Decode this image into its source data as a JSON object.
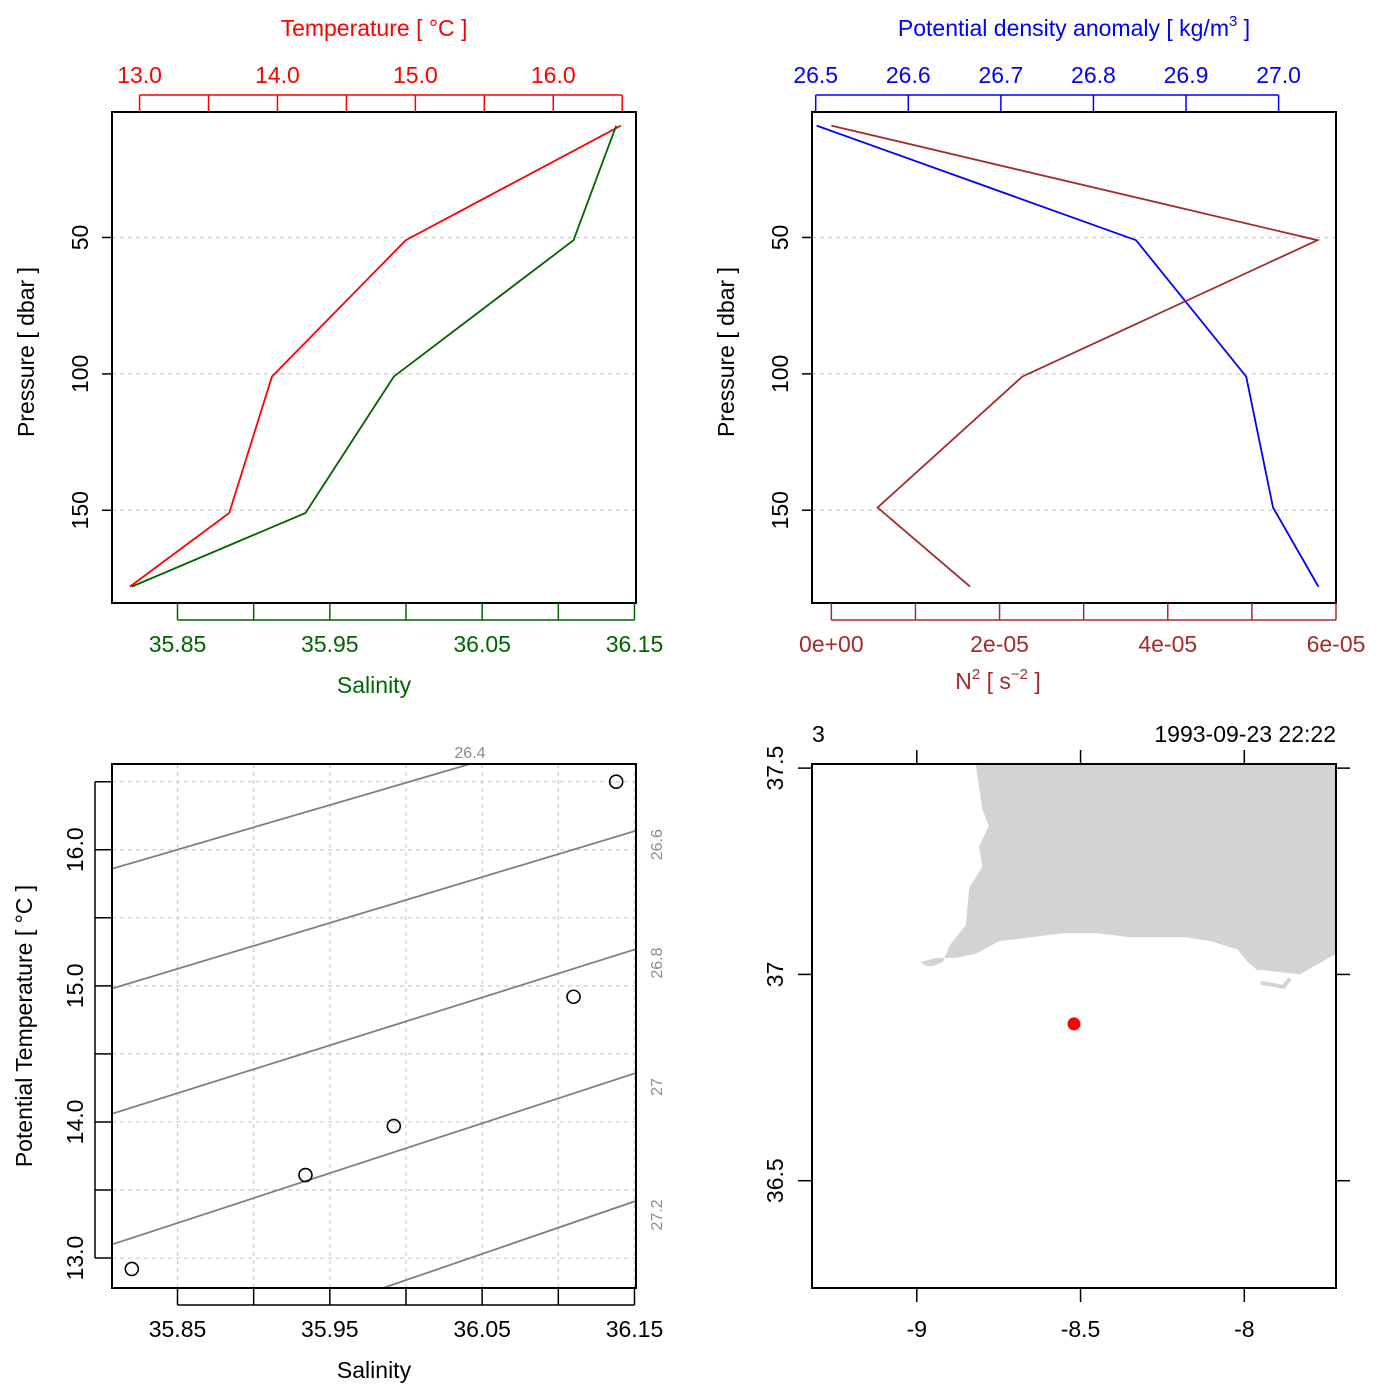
{
  "chart_data": [
    {
      "type": "line",
      "panel": "profile-temperature-salinity",
      "ylabel": "Pressure [ dbar ]",
      "y_ticks": [
        50,
        100,
        150
      ],
      "ylim": [
        184,
        4
      ],
      "grid": true,
      "top_axis": {
        "label": "Temperature [ °C ]",
        "color": "#ff0000",
        "tick_labels": [
          "13.0",
          "14.0",
          "15.0",
          "16.0"
        ],
        "tick_values": [
          13.0,
          13.5,
          14.0,
          14.5,
          15.0,
          15.5,
          16.0,
          16.5
        ],
        "labeled_ticks": [
          13.0,
          14.0,
          15.0,
          16.0
        ],
        "range": [
          12.8,
          16.6
        ]
      },
      "bottom_axis": {
        "label": "Salinity",
        "color": "#006400",
        "tick_labels": [
          "35.85",
          "35.95",
          "36.05",
          "36.15"
        ],
        "tick_values": [
          35.85,
          35.9,
          35.95,
          36.0,
          36.05,
          36.1,
          36.15
        ],
        "labeled_ticks": [
          35.85,
          35.95,
          36.05,
          36.15
        ],
        "range": [
          35.807,
          36.151
        ]
      },
      "series": [
        {
          "color": "#ff0000",
          "axis": "top",
          "x": [
            16.49,
            14.93,
            13.96,
            13.65,
            12.93
          ],
          "y": [
            9,
            51,
            101,
            151,
            178
          ]
        },
        {
          "color": "#006400",
          "axis": "bottom",
          "x": [
            36.138,
            36.11,
            35.992,
            35.934,
            35.82
          ],
          "y": [
            9,
            51,
            101,
            151,
            178
          ]
        }
      ]
    },
    {
      "type": "line",
      "panel": "profile-density-n2",
      "ylabel": "Pressure [ dbar ]",
      "y_ticks": [
        50,
        100,
        150
      ],
      "ylim": [
        184,
        4
      ],
      "grid": true,
      "top_axis": {
        "label": "Potential density anomaly [ kg/m³ ]",
        "color": "#0000ff",
        "tick_labels": [
          "26.5",
          "26.6",
          "26.7",
          "26.8",
          "26.9",
          "27.0"
        ],
        "tick_values": [
          26.5,
          26.6,
          26.7,
          26.8,
          26.9,
          27.0
        ],
        "labeled_ticks": [
          26.5,
          26.6,
          26.7,
          26.8,
          26.9,
          27.0
        ],
        "range": [
          26.496,
          27.062
        ]
      },
      "bottom_axis": {
        "label": "N² [ s⁻² ]",
        "color": "#a52a2a",
        "tick_labels": [
          "0e+00",
          "2e-05",
          "4e-05",
          "6e-05"
        ],
        "tick_values": [
          0,
          1e-05,
          2e-05,
          3e-05,
          4e-05,
          5e-05,
          6e-05
        ],
        "labeled_ticks": [
          0,
          2e-05,
          4e-05,
          6e-05
        ],
        "range": [
          -2.3e-06,
          6e-05
        ]
      },
      "series": [
        {
          "color": "#0000ff",
          "axis": "top",
          "x": [
            26.501,
            26.846,
            26.965,
            26.994,
            27.043
          ],
          "y": [
            9,
            51,
            101,
            149,
            178
          ]
        },
        {
          "color": "#a52a2a",
          "axis": "bottom",
          "x": [
            0.0,
            5.78e-05,
            2.27e-05,
            5.5e-06,
            1.65e-05
          ],
          "y": [
            9,
            51,
            101,
            149,
            178
          ]
        }
      ]
    },
    {
      "type": "scatter",
      "panel": "ts-diagram",
      "xlabel": "Salinity",
      "ylabel": "Potential Temperature [ °C ]",
      "x_tick_labels": [
        "35.85",
        "35.95",
        "36.05",
        "36.15"
      ],
      "x_tick_values": [
        35.85,
        35.9,
        35.95,
        36.0,
        36.05,
        36.1,
        36.15
      ],
      "x_labeled_ticks": [
        35.85,
        35.95,
        36.05,
        36.15
      ],
      "xlim": [
        35.807,
        36.151
      ],
      "y_tick_labels": [
        "13.0",
        "14.0",
        "15.0",
        "16.0"
      ],
      "y_tick_values": [
        13.0,
        13.5,
        14.0,
        14.5,
        15.0,
        15.5,
        16.0,
        16.5
      ],
      "y_labeled_ticks": [
        13.0,
        14.0,
        15.0,
        16.0
      ],
      "ylim": [
        12.78,
        16.63
      ],
      "grid": true,
      "points": {
        "x": [
          35.82,
          35.934,
          35.992,
          36.11,
          36.138
        ],
        "y": [
          12.92,
          13.61,
          13.97,
          14.92,
          16.5
        ]
      },
      "isopycnals": [
        {
          "label": "26.4",
          "x0": 35.807,
          "y0": 15.86,
          "x1": 36.042,
          "y1": 16.63
        },
        {
          "label": "26.6",
          "x0": 35.807,
          "y0": 14.98,
          "x1": 36.151,
          "y1": 16.14
        },
        {
          "label": "26.8",
          "x0": 35.807,
          "y0": 14.06,
          "x1": 36.151,
          "y1": 15.27
        },
        {
          "label": "27",
          "x0": 35.807,
          "y0": 13.1,
          "x1": 36.151,
          "y1": 14.36
        },
        {
          "label": "27.2",
          "x0": 35.985,
          "y0": 12.78,
          "x1": 36.151,
          "y1": 13.42
        }
      ]
    },
    {
      "type": "map",
      "panel": "station-map",
      "top_left_label": "3",
      "top_right_label": "1993-09-23 22:22",
      "x_tick_labels": [
        "-9",
        "-8.5",
        "-8"
      ],
      "x_tick_values": [
        -9,
        -8.5,
        -8
      ],
      "xlim": [
        -9.32,
        -7.72
      ],
      "y_tick_labels": [
        "37.5",
        "37",
        "36.5"
      ],
      "y_tick_values": [
        37.5,
        37,
        36.5
      ],
      "ylim": [
        36.24,
        37.51
      ],
      "land_color": "#d3d3d3",
      "station": {
        "lon": -8.52,
        "lat": 36.88,
        "color": "#ff0000"
      },
      "coastline": [
        [
          -8.82,
          37.51
        ],
        [
          -8.8,
          37.4
        ],
        [
          -8.78,
          37.36
        ],
        [
          -8.81,
          37.31
        ],
        [
          -8.8,
          37.26
        ],
        [
          -8.84,
          37.21
        ],
        [
          -8.85,
          37.12
        ],
        [
          -8.9,
          37.07
        ],
        [
          -8.92,
          37.03
        ],
        [
          -8.95,
          37.02
        ],
        [
          -8.97,
          37.02
        ],
        [
          -8.99,
          37.03
        ],
        [
          -8.94,
          37.04
        ],
        [
          -8.88,
          37.04
        ],
        [
          -8.82,
          37.05
        ],
        [
          -8.75,
          37.08
        ],
        [
          -8.65,
          37.09
        ],
        [
          -8.55,
          37.1
        ],
        [
          -8.45,
          37.1
        ],
        [
          -8.35,
          37.09
        ],
        [
          -8.18,
          37.09
        ],
        [
          -8.1,
          37.08
        ],
        [
          -8.02,
          37.06
        ],
        [
          -7.99,
          37.03
        ],
        [
          -7.96,
          37.01
        ],
        [
          -7.94,
          37.01
        ],
        [
          -7.83,
          37.0
        ],
        [
          -7.72,
          37.05
        ],
        [
          -7.72,
          37.51
        ]
      ],
      "spit": [
        [
          -7.95,
          36.98
        ],
        [
          -7.88,
          36.97
        ],
        [
          -7.86,
          36.99
        ]
      ]
    }
  ]
}
